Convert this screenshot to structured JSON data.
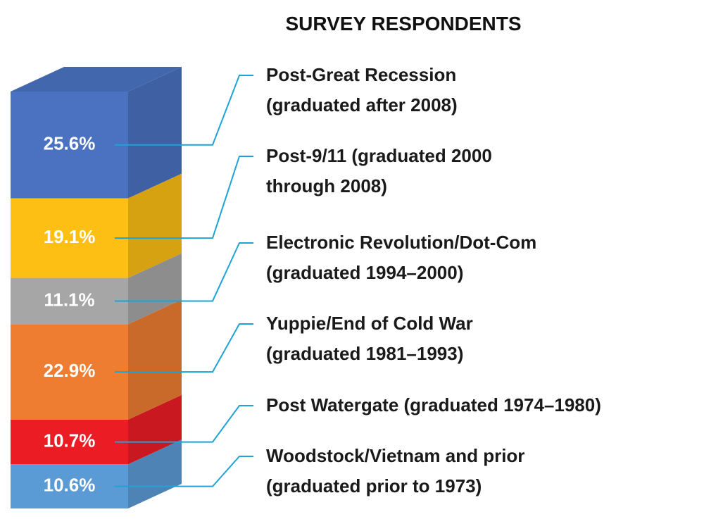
{
  "chart_data": {
    "type": "bar",
    "title": "SURVEY RESPONDENTS",
    "series": [
      {
        "name": "Post-Great Recession\n(graduated after 2008)",
        "color": "#4a72c0",
        "values": [
          25.6
        ],
        "value_labels": [
          "25.6%"
        ]
      },
      {
        "name": "Post-9/11 (graduated 2000\nthrough 2008)",
        "color": "#fdbf14",
        "values": [
          19.1
        ],
        "value_labels": [
          "19.1%"
        ]
      },
      {
        "name": "Electronic Revolution/Dot-Com\n(graduated 1994–2000)",
        "color": "#a6a6a6",
        "values": [
          11.1
        ],
        "value_labels": [
          "11.1%"
        ]
      },
      {
        "name": "Yuppie/End of Cold War\n(graduated 1981–1993)",
        "color": "#ee7d31",
        "values": [
          22.9
        ],
        "value_labels": [
          "22.9%"
        ]
      },
      {
        "name": "Post Watergate (graduated 1974–1980)",
        "color": "#ec1c24",
        "values": [
          10.7
        ],
        "value_labels": [
          "10.7%"
        ]
      },
      {
        "name": "Woodstock/Vietnam and prior\n(graduated prior to 1973)",
        "color": "#5b9bd5",
        "values": [
          10.6
        ],
        "value_labels": [
          "10.6%"
        ]
      }
    ]
  }
}
